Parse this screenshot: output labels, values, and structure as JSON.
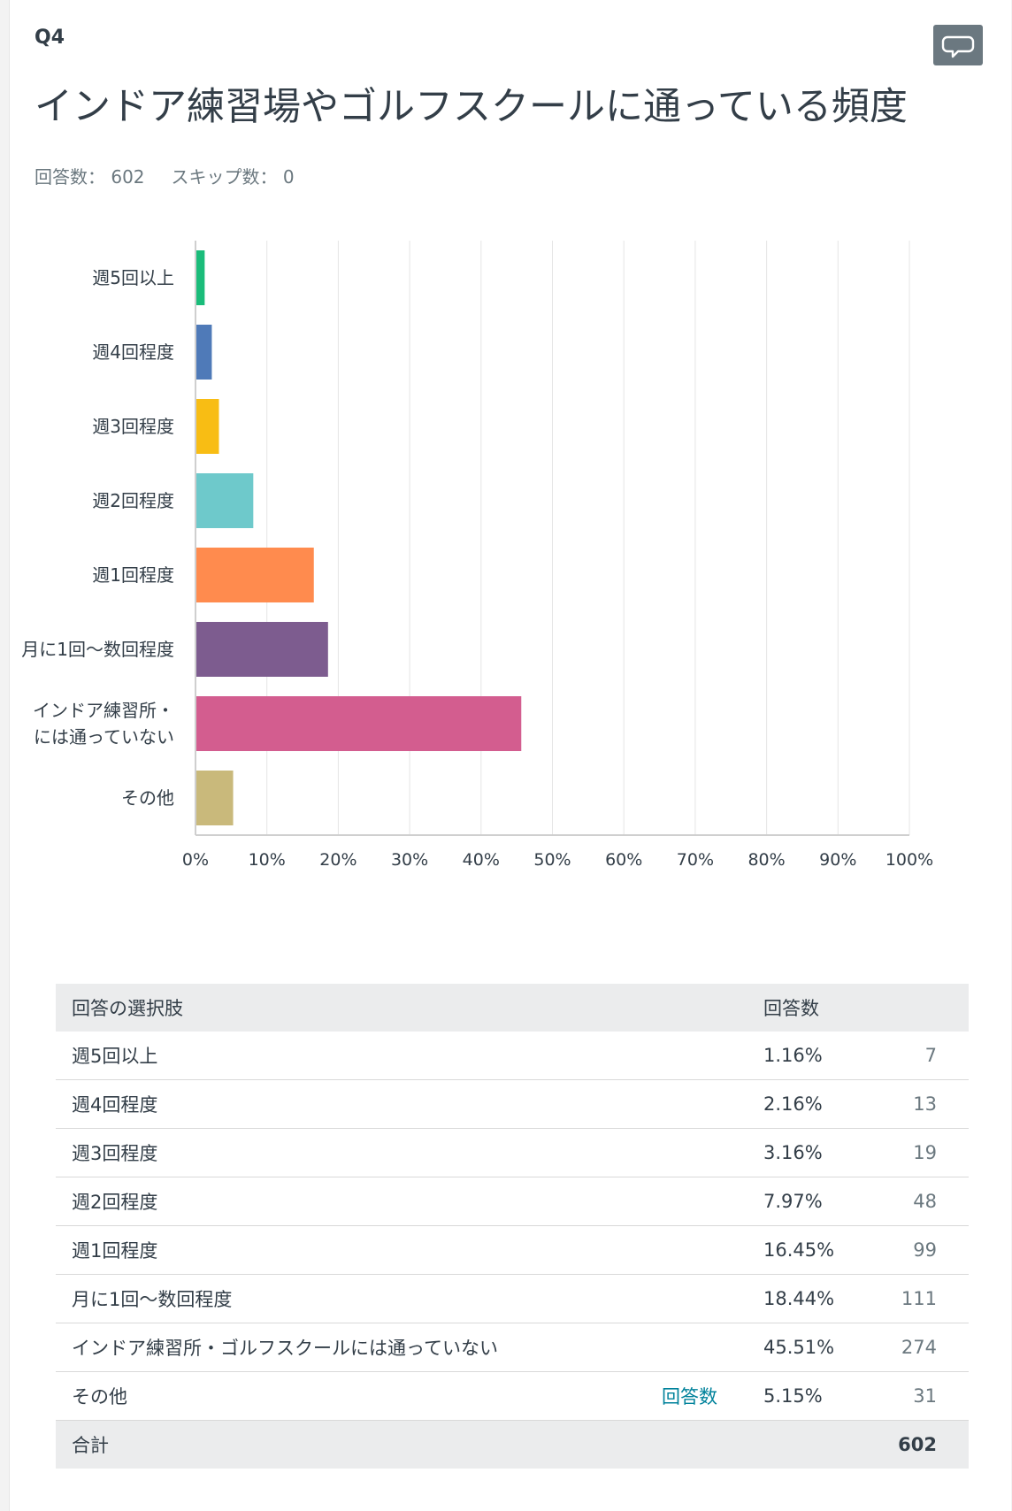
{
  "question": {
    "number": "Q4",
    "title": "インドア練習場やゴルフスクールに通っている頻度",
    "answered_label": "回答数： 602",
    "skipped_label": "スキップ数： 0"
  },
  "colors": {
    "bars": [
      "#1abc7a",
      "#4f7ab8",
      "#f8bd14",
      "#6ec9cb",
      "#ff8b4e",
      "#7d5c8f",
      "#d35d8f",
      "#c9b97b"
    ],
    "grid": "#e5e5e5",
    "axis": "#cfcfcf"
  },
  "chart_data": {
    "type": "bar",
    "orientation": "horizontal",
    "categories": [
      "週5回以上",
      "週4回程度",
      "週3回程度",
      "週2回程度",
      "週1回程度",
      "月に1回～数回程度",
      "インドア練習所・には通っていない",
      "その他"
    ],
    "category_lines": [
      [
        "週5回以上"
      ],
      [
        "週4回程度"
      ],
      [
        "週3回程度"
      ],
      [
        "週2回程度"
      ],
      [
        "週1回程度"
      ],
      [
        "月に1回～数回程度"
      ],
      [
        "インドア練習所・",
        "には通っていない"
      ],
      [
        "その他"
      ]
    ],
    "values": [
      1.16,
      2.16,
      3.16,
      7.97,
      16.45,
      18.44,
      45.51,
      5.15
    ],
    "xlim": [
      0,
      100
    ],
    "xticks": [
      "0%",
      "10%",
      "20%",
      "30%",
      "40%",
      "50%",
      "60%",
      "70%",
      "80%",
      "90%",
      "100%"
    ],
    "grid": true
  },
  "table": {
    "header_choice": "回答の選択肢",
    "header_count": "回答数",
    "rows": [
      {
        "choice": "週5回以上",
        "pct": "1.16%",
        "count": "7"
      },
      {
        "choice": "週4回程度",
        "pct": "2.16%",
        "count": "13"
      },
      {
        "choice": "週3回程度",
        "pct": "3.16%",
        "count": "19"
      },
      {
        "choice": "週2回程度",
        "pct": "7.97%",
        "count": "48"
      },
      {
        "choice": "週1回程度",
        "pct": "16.45%",
        "count": "99"
      },
      {
        "choice": "月に1回～数回程度",
        "pct": "18.44%",
        "count": "111"
      },
      {
        "choice": "インドア練習所・ゴルフスクールには通っていない",
        "pct": "45.51%",
        "count": "274"
      },
      {
        "choice": "その他",
        "pct": "5.15%",
        "count": "31",
        "link": "回答数"
      }
    ],
    "total_label": "合計",
    "total_count": "602"
  }
}
